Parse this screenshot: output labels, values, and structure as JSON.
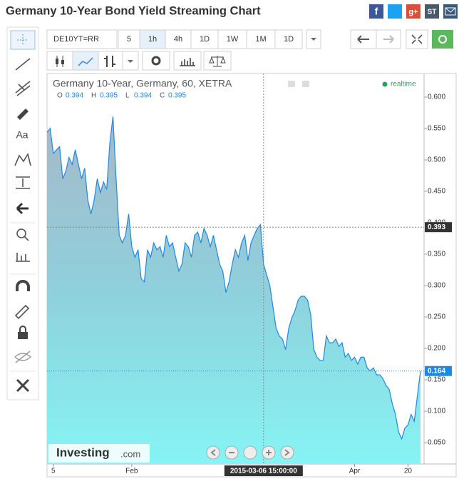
{
  "header": {
    "title": "Germany 10-Year Bond Yield Streaming Chart"
  },
  "toolbar": {
    "symbol": "DE10YT=RR",
    "intervals": [
      "5",
      "1h",
      "4h",
      "1D",
      "1W",
      "1M",
      "1D"
    ],
    "active_interval": 1
  },
  "legend": {
    "title": "Germany 10-Year, Germany, 60, XETRA",
    "status": "realtime",
    "ohlc": [
      {
        "key": "O",
        "value": 0.394
      },
      {
        "key": "H",
        "value": 0.395
      },
      {
        "key": "L",
        "value": 0.394
      },
      {
        "key": "C",
        "value": 0.395
      }
    ]
  },
  "logo": {
    "brand": "Investing",
    "domain": ".com"
  },
  "chart_data": {
    "type": "area",
    "color": "#1e88e5",
    "values": [
      0.544,
      0.55,
      0.51,
      0.516,
      0.521,
      0.47,
      0.482,
      0.504,
      0.493,
      0.516,
      0.493,
      0.47,
      0.487,
      0.436,
      0.414,
      0.436,
      0.47,
      0.448,
      0.465,
      0.453,
      0.527,
      0.569,
      0.47,
      0.38,
      0.368,
      0.38,
      0.414,
      0.362,
      0.345,
      0.357,
      0.311,
      0.306,
      0.357,
      0.345,
      0.368,
      0.357,
      0.362,
      0.345,
      0.38,
      0.362,
      0.368,
      0.345,
      0.323,
      0.334,
      0.368,
      0.362,
      0.345,
      0.38,
      0.385,
      0.368,
      0.391,
      0.38,
      0.362,
      0.38,
      0.357,
      0.334,
      0.323,
      0.289,
      0.306,
      0.334,
      0.357,
      0.345,
      0.368,
      0.38,
      0.34,
      0.368,
      0.38,
      0.391,
      0.397,
      0.334,
      0.317,
      0.3,
      0.266,
      0.232,
      0.22,
      0.215,
      0.198,
      0.232,
      0.249,
      0.26,
      0.277,
      0.283,
      0.283,
      0.277,
      0.254,
      0.198,
      0.186,
      0.181,
      0.181,
      0.22,
      0.209,
      0.209,
      0.215,
      0.203,
      0.209,
      0.186,
      0.192,
      0.181,
      0.186,
      0.175,
      0.186,
      0.186,
      0.169,
      0.164,
      0.169,
      0.158,
      0.158,
      0.152,
      0.141,
      0.135,
      0.112,
      0.095,
      0.067,
      0.056,
      0.073,
      0.078,
      0.095,
      0.084,
      0.124,
      0.164
    ],
    "ylim": [
      0.016,
      0.6375
    ],
    "yticks": [
      {
        "value": 0.6,
        "label": "0.600"
      },
      {
        "value": 0.55,
        "label": "0.550"
      },
      {
        "value": 0.5,
        "label": "0.500"
      },
      {
        "value": 0.45,
        "label": "0.450"
      },
      {
        "value": 0.4,
        "label": "0.400"
      },
      {
        "value": 0.35,
        "label": "0.350"
      },
      {
        "value": 0.3,
        "label": "0.300"
      },
      {
        "value": 0.25,
        "label": "0.250"
      },
      {
        "value": 0.2,
        "label": "0.200"
      },
      {
        "value": 0.15,
        "label": "0.150"
      },
      {
        "value": 0.1,
        "label": "0.100"
      },
      {
        "value": 0.05,
        "label": "0.050"
      }
    ],
    "xticks": [
      {
        "value": 2,
        "label": "5"
      },
      {
        "value": 27,
        "label": "Feb"
      },
      {
        "value": 98,
        "label": "Apr"
      },
      {
        "value": 115,
        "label": "20"
      }
    ],
    "crosshair": {
      "x": 69,
      "x_label": "2015-03-06 15:00:00",
      "y": 0.393
    },
    "current_price": 0.164
  }
}
